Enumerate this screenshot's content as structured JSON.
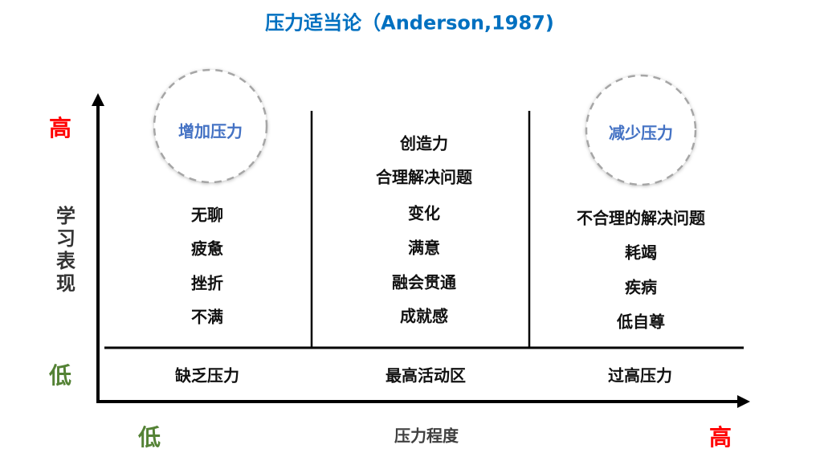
{
  "title": "压力适当论（Anderson,1987)",
  "y_axis": {
    "label": "学习表现",
    "high": "高",
    "low": "低"
  },
  "x_axis": {
    "label": "压力程度",
    "low": "低",
    "high": "高"
  },
  "colors": {
    "title": "#0070c0",
    "high": "#ff0000",
    "low": "#548235",
    "bubble_text": "#4472c4",
    "circle": "#a6a6a6"
  },
  "columns": [
    {
      "bubble": "增加压力",
      "items": [
        "无聊",
        "疲惫",
        "挫折",
        "不满"
      ],
      "zone": "缺乏压力"
    },
    {
      "items": [
        "创造力",
        "合理解决问题",
        "变化",
        "满意",
        "融会贯通",
        "成就感"
      ],
      "zone": "最高活动区"
    },
    {
      "bubble": "减少压力",
      "items": [
        "不合理的解决问题",
        "耗竭",
        "疾病",
        "低自尊"
      ],
      "zone": "过高压力"
    }
  ]
}
